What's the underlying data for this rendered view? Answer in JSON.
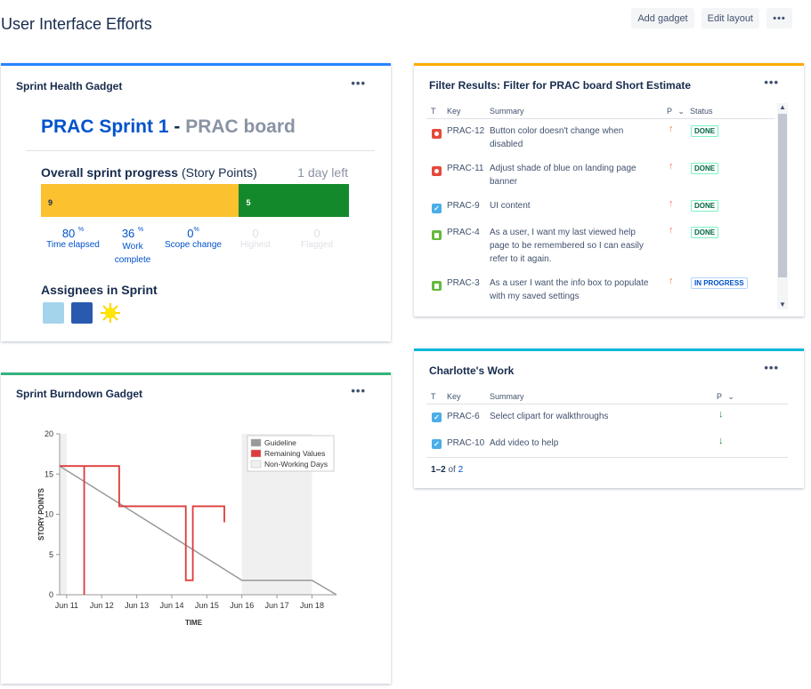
{
  "page": {
    "title": "User Interface Efforts"
  },
  "toolbar": {
    "add_gadget": "Add gadget",
    "edit_layout": "Edit layout",
    "more": "•••"
  },
  "health": {
    "title": "Sprint Health Gadget",
    "menu": "•••",
    "sprint_name": "PRAC Sprint 1",
    "separator": " - ",
    "board_name": "PRAC board",
    "progress_label": "Overall sprint progress",
    "progress_unit": " (Story Points)",
    "days_left": "1 day left",
    "todo_points": "9",
    "done_points": "5",
    "todo_fraction": 0.643,
    "stats": [
      {
        "num": "80",
        "sup": "%",
        "label": "Time elapsed"
      },
      {
        "num": "36",
        "sup": "%",
        "label": "Work complete"
      },
      {
        "num": "0",
        "sup": "%",
        "label": "Scope change"
      },
      {
        "num": "0",
        "sup": "",
        "label": "Highest"
      },
      {
        "num": "0",
        "sup": "",
        "label": "Flagged"
      }
    ],
    "assignees_title": "Assignees in Sprint"
  },
  "burndown": {
    "title": "Sprint Burndown Gadget",
    "menu": "•••"
  },
  "chart_data": {
    "type": "line",
    "title": "",
    "xlabel": "TIME",
    "ylabel": "STORY POINTS",
    "ylim": [
      0,
      20
    ],
    "yticks": [
      "0",
      "5",
      "10",
      "15",
      "20"
    ],
    "x_ticks": [
      "Jun 11",
      "Jun 12",
      "Jun 13",
      "Jun 14",
      "Jun 15",
      "Jun 16",
      "Jun 17",
      "Jun 18"
    ],
    "legend": [
      "Guideline",
      "Remaining Values",
      "Non-Working Days"
    ],
    "legend_position": "top-right",
    "colors": {
      "guideline": "#999999",
      "remaining": "#e03b3b",
      "nonworking": "#f0f0f0"
    },
    "non_working_days": [
      [
        "Jun 10.8",
        "Jun 11"
      ],
      [
        "Jun 16",
        "Jun 18"
      ]
    ],
    "series": [
      {
        "name": "Guideline",
        "points": [
          [
            "Jun 10.8",
            16
          ],
          [
            "Jun 16",
            1.8
          ],
          [
            "Jun 18",
            1.8
          ],
          [
            "Jun 18.7",
            0
          ]
        ]
      },
      {
        "name": "Remaining Values",
        "points": [
          [
            "Jun 10.8",
            16
          ],
          [
            "Jun 11.5",
            16
          ],
          [
            "Jun 11.5",
            0
          ],
          [
            "Jun 11.5",
            16
          ],
          [
            "Jun 12.5",
            16
          ],
          [
            "Jun 12.5",
            11
          ],
          [
            "Jun 14.4",
            11
          ],
          [
            "Jun 14.4",
            1.8
          ],
          [
            "Jun 14.6",
            1.8
          ],
          [
            "Jun 14.6",
            11
          ],
          [
            "Jun 15.5",
            11
          ],
          [
            "Jun 15.5",
            9
          ]
        ]
      }
    ]
  },
  "filter": {
    "title": "Filter Results: Filter for PRAC board Short Estimate",
    "menu": "•••",
    "columns": {
      "t": "T",
      "key": "Key",
      "summary": "Summary",
      "p": "P",
      "status": "Status"
    },
    "rows": [
      {
        "type": "bug",
        "key": "PRAC-12",
        "summary": "Button color doesn't change when disabled",
        "priority": "up",
        "status": "DONE"
      },
      {
        "type": "bug",
        "key": "PRAC-11",
        "summary": "Adjust shade of blue on landing page banner",
        "priority": "up",
        "status": "DONE"
      },
      {
        "type": "task",
        "key": "PRAC-9",
        "summary": "UI content",
        "priority": "up",
        "status": "DONE"
      },
      {
        "type": "story",
        "key": "PRAC-4",
        "summary": "As a user, I want my last viewed help page to be remembered so I can easily refer to it again.",
        "priority": "up",
        "status": "DONE"
      },
      {
        "type": "story",
        "key": "PRAC-3",
        "summary": "As a user I want the info box to populate with my saved settings",
        "priority": "up",
        "status": "IN PROGRESS"
      }
    ]
  },
  "charlotte": {
    "title": "Charlotte's Work",
    "menu": "•••",
    "columns": {
      "t": "T",
      "key": "Key",
      "summary": "Summary",
      "p": "P"
    },
    "rows": [
      {
        "type": "task",
        "key": "PRAC-6",
        "summary": "Select clipart for walkthroughs",
        "priority": "down"
      },
      {
        "type": "task",
        "key": "PRAC-10",
        "summary": "Add video to help",
        "priority": "down"
      }
    ],
    "paging_range": "1–2",
    "paging_of": " of ",
    "paging_total": "2"
  }
}
